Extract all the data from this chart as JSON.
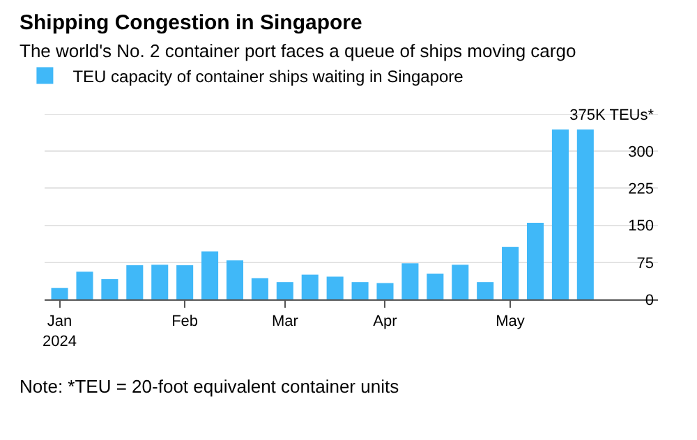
{
  "chart_data": {
    "type": "bar",
    "title": "Shipping Congestion in Singapore",
    "subtitle": "The world's No. 2 container port faces a queue of ships moving cargo",
    "categories": [
      "Jan\n2024",
      null,
      null,
      null,
      null,
      "Feb",
      null,
      null,
      null,
      "Mar",
      null,
      null,
      null,
      "Apr",
      null,
      null,
      null,
      null,
      "May",
      null,
      null,
      null
    ],
    "series": [
      {
        "name": "TEU capacity of container ships waiting in Singapore",
        "color": "#40b8f8",
        "values": [
          23,
          56,
          41,
          69,
          70,
          69,
          97,
          79,
          43,
          35,
          50,
          46,
          35,
          33,
          73,
          52,
          70,
          35,
          106,
          155,
          344,
          344
        ]
      }
    ],
    "ylim": [
      0,
      375
    ],
    "yticks": [
      0,
      75,
      150,
      225,
      300,
      {
        "value": 375,
        "label": "375K TEUs*"
      }
    ],
    "grid": "y",
    "legend": "top left",
    "annotations": [
      "Note: *TEU = 20-foot equivalent container units"
    ]
  }
}
